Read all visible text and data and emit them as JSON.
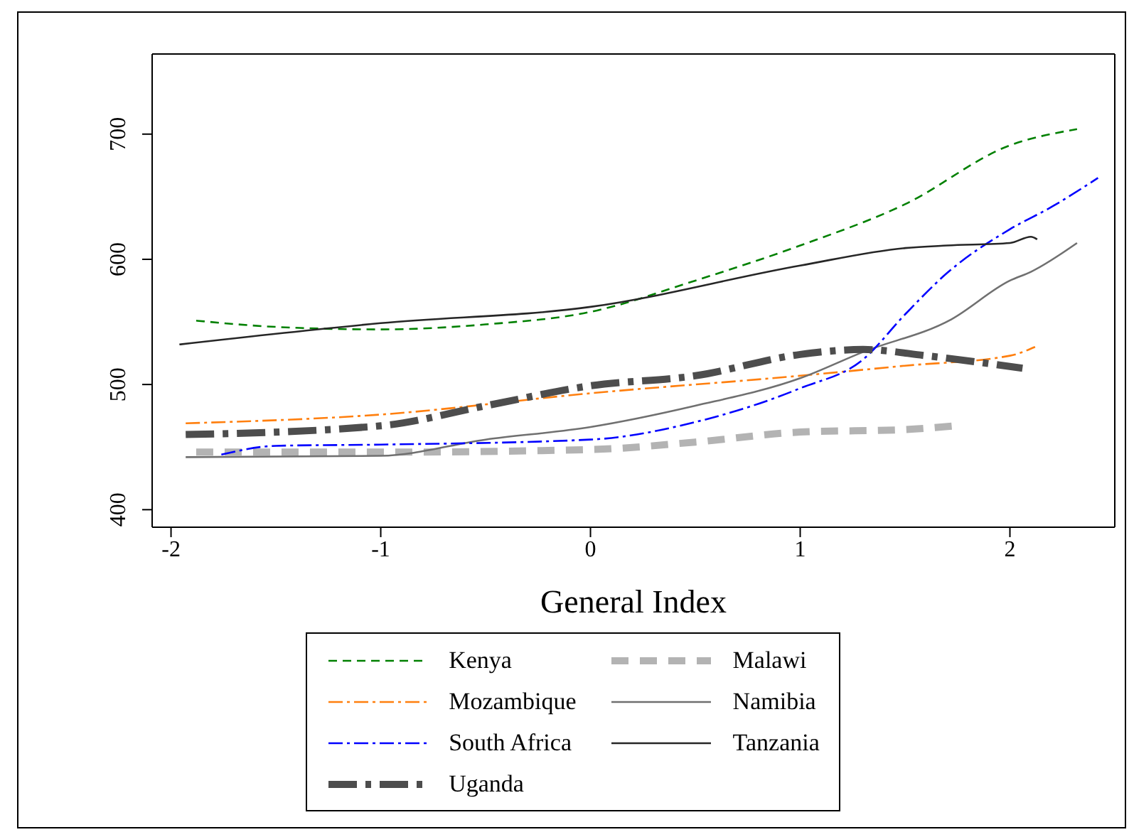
{
  "chart_data": {
    "type": "line",
    "xlabel": "General Index",
    "xlim": [
      -2.09,
      2.5
    ],
    "xticks": [
      -2,
      -1,
      0,
      1,
      2
    ],
    "ylim": [
      386,
      764
    ],
    "yticks": [
      400,
      500,
      600,
      700
    ],
    "grid": false,
    "legend": "bottom",
    "marker": "none",
    "series": [
      {
        "name": "Kenya",
        "color": "#008000",
        "line_style": "dashed",
        "x": [
          -1.88,
          -1.5,
          -1,
          -0.5,
          0,
          0.5,
          1,
          1.5,
          2,
          2.32
        ],
        "values": [
          551,
          546,
          544,
          548,
          558,
          583,
          611,
          644,
          691,
          704
        ]
      },
      {
        "name": "Malawi",
        "color": "#b3b3b3",
        "line_style": "dashed",
        "x": [
          -1.88,
          -1,
          0,
          0.5,
          1,
          1.5,
          1.74
        ],
        "values": [
          446,
          446,
          448,
          454,
          462,
          464,
          467
        ]
      },
      {
        "name": "Mozambique",
        "color": "#ff7f0e",
        "line_style": "dashdot",
        "x": [
          -1.93,
          -1,
          0,
          1,
          1.5,
          2,
          2.12
        ],
        "values": [
          469,
          476,
          493,
          507,
          515,
          523,
          530
        ]
      },
      {
        "name": "Namibia",
        "color": "#707070",
        "line_style": "solid",
        "x": [
          -1.93,
          -1,
          -0.5,
          0,
          0.5,
          1,
          1.3,
          1.72,
          2,
          2.1,
          2.32
        ],
        "values": [
          442,
          443,
          456,
          466,
          483,
          505,
          526,
          552,
          583,
          590,
          613
        ]
      },
      {
        "name": "South Africa",
        "color": "#0000ff",
        "line_style": "dashdot",
        "x": [
          -1.76,
          -1.5,
          -1,
          0,
          0.5,
          1,
          1.3,
          1.5,
          1.7,
          2,
          2.2,
          2.42
        ],
        "values": [
          444,
          451,
          452,
          456,
          470,
          497,
          520,
          556,
          589,
          624,
          642,
          665
        ]
      },
      {
        "name": "Tanzania",
        "color": "#262626",
        "line_style": "solid",
        "x": [
          -1.96,
          -1,
          0,
          1,
          1.5,
          1.7,
          2,
          2.1,
          2.13
        ],
        "values": [
          532,
          549,
          562,
          595,
          609,
          611,
          613,
          618,
          616
        ]
      },
      {
        "name": "Uganda",
        "color": "#4d4d4d",
        "line_style": "dashdot",
        "x": [
          -1.93,
          -1,
          -0.5,
          0,
          0.5,
          1,
          1.3,
          1.6,
          2.06
        ],
        "values": [
          460,
          467,
          483,
          499,
          507,
          524,
          528,
          523,
          513
        ]
      }
    ]
  }
}
